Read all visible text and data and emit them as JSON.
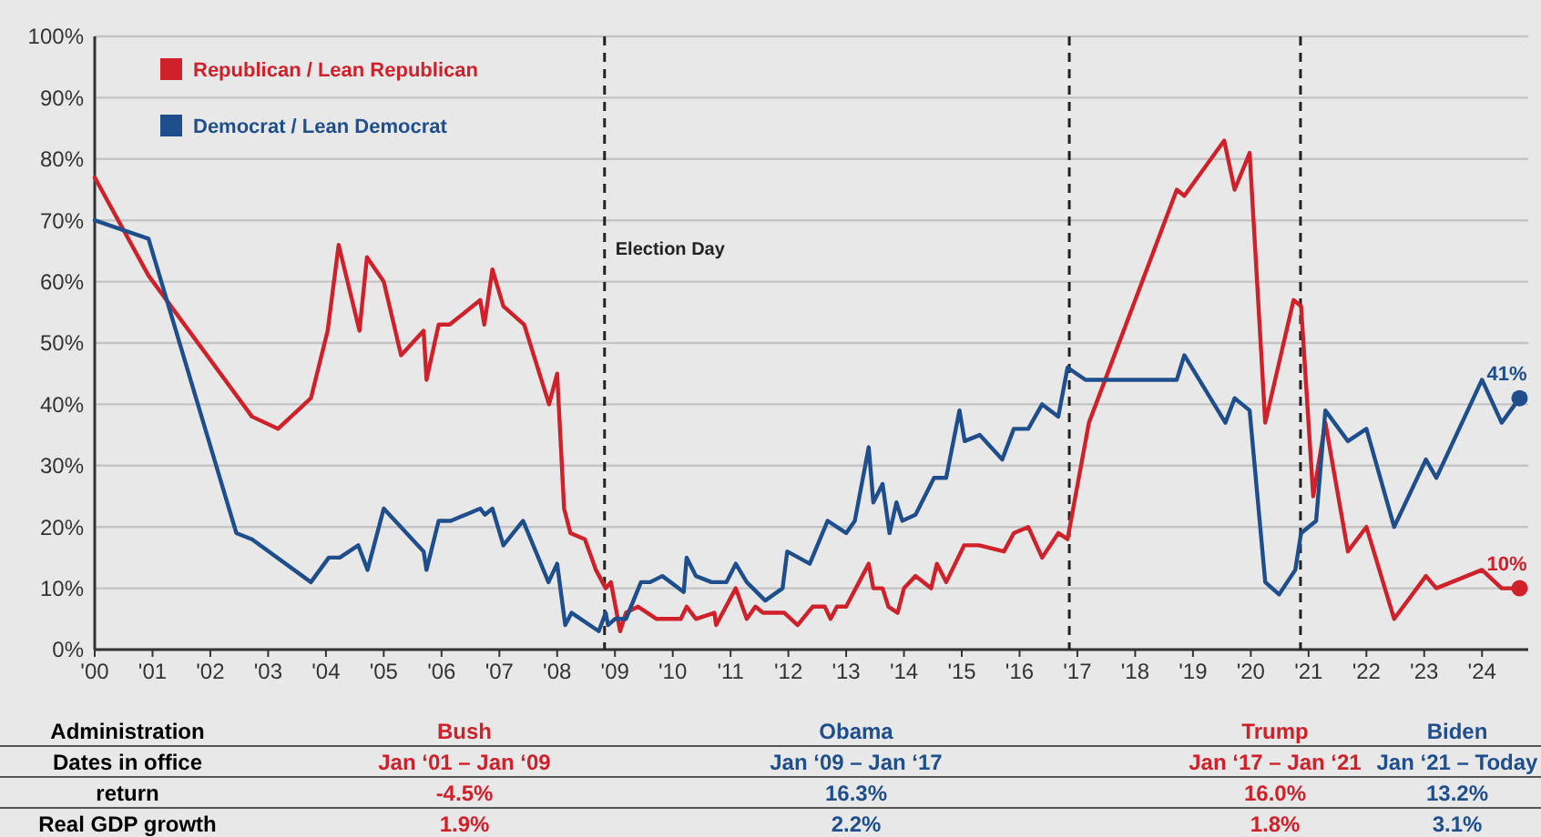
{
  "chart_data": {
    "type": "line",
    "legend": "top left",
    "grid": "y",
    "line_style": "solid",
    "marker": "none",
    "xlim": [
      2000,
      2024.8
    ],
    "xticks": [
      {
        "value": 2000,
        "label": "'00"
      },
      {
        "value": 2001,
        "label": "'01"
      },
      {
        "value": 2002,
        "label": "'02"
      },
      {
        "value": 2003,
        "label": "'03"
      },
      {
        "value": 2004,
        "label": "'04"
      },
      {
        "value": 2005,
        "label": "'05"
      },
      {
        "value": 2006,
        "label": "'06"
      },
      {
        "value": 2007,
        "label": "'07"
      },
      {
        "value": 2008,
        "label": "'08"
      },
      {
        "value": 2009,
        "label": "'09"
      },
      {
        "value": 2010,
        "label": "'10"
      },
      {
        "value": 2011,
        "label": "'11"
      },
      {
        "value": 2012,
        "label": "'12"
      },
      {
        "value": 2013,
        "label": "'13"
      },
      {
        "value": 2014,
        "label": "'14"
      },
      {
        "value": 2015,
        "label": "'15"
      },
      {
        "value": 2016,
        "label": "'16"
      },
      {
        "value": 2017,
        "label": "'17"
      },
      {
        "value": 2018,
        "label": "'18"
      },
      {
        "value": 2019,
        "label": "'19"
      },
      {
        "value": 2020,
        "label": "'20"
      },
      {
        "value": 2021,
        "label": "'21"
      },
      {
        "value": 2022,
        "label": "'22"
      },
      {
        "value": 2023,
        "label": "'23"
      },
      {
        "value": 2024,
        "label": "'24"
      }
    ],
    "ylim": [
      0,
      100
    ],
    "yticks": [
      {
        "value": 0,
        "label": "0%"
      },
      {
        "value": 10,
        "label": "10%"
      },
      {
        "value": 20,
        "label": "20%"
      },
      {
        "value": 30,
        "label": "30%"
      },
      {
        "value": 40,
        "label": "40%"
      },
      {
        "value": 50,
        "label": "50%"
      },
      {
        "value": 60,
        "label": "60%"
      },
      {
        "value": 70,
        "label": "70%"
      },
      {
        "value": 80,
        "label": "80%"
      },
      {
        "value": 90,
        "label": "90%"
      },
      {
        "value": 100,
        "label": "100%"
      }
    ],
    "series": [
      {
        "name": "Republican / Lean Republican",
        "color": "#d0202a",
        "x": [
          2000.0,
          2000.93,
          2002.72,
          2003.17,
          2003.74,
          2004.03,
          2004.22,
          2004.58,
          2004.71,
          2005.0,
          2005.3,
          2005.69,
          2005.74,
          2005.95,
          2006.14,
          2006.67,
          2006.74,
          2006.88,
          2007.07,
          2007.43,
          2007.86,
          2008.0,
          2008.12,
          2008.23,
          2008.48,
          2008.67,
          2008.84,
          2008.93,
          2009.09,
          2009.19,
          2009.4,
          2009.72,
          2010.14,
          2010.24,
          2010.4,
          2010.72,
          2010.75,
          2011.09,
          2011.28,
          2011.43,
          2011.56,
          2011.93,
          2012.16,
          2012.42,
          2012.63,
          2012.73,
          2012.84,
          2013.0,
          2013.39,
          2013.47,
          2013.63,
          2013.73,
          2013.89,
          2014.0,
          2014.2,
          2014.47,
          2014.57,
          2014.73,
          2015.04,
          2015.3,
          2015.73,
          2015.9,
          2016.15,
          2016.39,
          2016.67,
          2016.83,
          2017.2,
          2018.72,
          2018.85,
          2019.54,
          2019.72,
          2019.98,
          2020.25,
          2020.74,
          2020.87,
          2021.08,
          2021.29,
          2021.68,
          2022.0,
          2022.48,
          2023.03,
          2023.21,
          2024.0,
          2024.34,
          2024.65
        ],
        "values": [
          77,
          61,
          38,
          36,
          41,
          52,
          66,
          52,
          64,
          60,
          48,
          52,
          44,
          53,
          53,
          57,
          53,
          62,
          56,
          53,
          40,
          45,
          23,
          19,
          18,
          13,
          10,
          11,
          3,
          6,
          7,
          5,
          5,
          7,
          5,
          6,
          4,
          10,
          5,
          7,
          6,
          6,
          4,
          7,
          7,
          5,
          7,
          7,
          14,
          10,
          10,
          7,
          6,
          10,
          12,
          10,
          14,
          11,
          17,
          17,
          16,
          19,
          20,
          15,
          19,
          18,
          37,
          75,
          74,
          83,
          75,
          81,
          37,
          57,
          56,
          25,
          37,
          16,
          20,
          5,
          12,
          10,
          13,
          10,
          10
        ]
      },
      {
        "name": "Democrat / Lean Democrat",
        "color": "#1f4e8c",
        "x": [
          2000.0,
          2000.93,
          2002.45,
          2002.72,
          2003.74,
          2004.05,
          2004.24,
          2004.56,
          2004.72,
          2005.0,
          2005.69,
          2005.74,
          2005.95,
          2006.16,
          2006.67,
          2006.75,
          2006.88,
          2007.07,
          2007.41,
          2007.85,
          2008.0,
          2008.14,
          2008.25,
          2008.72,
          2008.84,
          2008.88,
          2009.0,
          2009.19,
          2009.45,
          2009.61,
          2009.82,
          2010.19,
          2010.24,
          2010.4,
          2010.67,
          2010.93,
          2011.09,
          2011.28,
          2011.6,
          2011.9,
          2011.98,
          2012.37,
          2012.68,
          2013.0,
          2013.15,
          2013.39,
          2013.47,
          2013.63,
          2013.75,
          2013.87,
          2013.97,
          2014.2,
          2014.52,
          2014.73,
          2014.96,
          2015.05,
          2015.31,
          2015.7,
          2015.9,
          2016.15,
          2016.39,
          2016.67,
          2016.83,
          2017.14,
          2018.72,
          2018.85,
          2019.56,
          2019.72,
          2019.98,
          2020.25,
          2020.49,
          2020.77,
          2020.87,
          2021.13,
          2021.29,
          2021.68,
          2022.0,
          2022.48,
          2023.03,
          2023.21,
          2024.0,
          2024.34,
          2024.65
        ],
        "values": [
          70,
          67,
          19,
          18,
          11,
          15,
          15,
          17,
          13,
          23,
          16,
          13,
          21,
          21,
          23,
          22,
          23,
          17,
          21,
          11,
          14,
          4,
          6,
          3,
          6,
          4,
          5,
          5,
          11,
          11,
          12,
          9.4,
          15,
          12,
          11,
          11,
          14,
          11,
          8,
          10,
          16,
          14,
          21,
          19,
          21,
          33,
          24,
          27,
          19,
          24,
          21,
          22,
          28,
          28,
          39,
          34,
          35,
          31,
          36,
          36,
          40,
          38,
          46,
          44,
          44,
          48,
          37,
          41,
          39,
          11,
          9,
          13,
          19,
          21,
          39,
          34,
          36,
          20,
          31,
          28,
          44,
          37,
          41
        ]
      }
    ],
    "ref_lines": [
      {
        "axis": "x",
        "value": 2008.82,
        "label": "Election Day",
        "line_style": "dashed"
      },
      {
        "axis": "x",
        "value": 2016.86,
        "label": null,
        "line_style": "dashed"
      },
      {
        "axis": "x",
        "value": 2020.86,
        "label": null,
        "line_style": "dashed"
      }
    ],
    "annotations": [
      {
        "text": "41%",
        "x": 2024.65,
        "y": 41
      },
      {
        "text": "10%",
        "x": 2024.65,
        "y": 10
      },
      "Administration",
      "Bush",
      "Obama",
      "Trump",
      "Biden",
      "Dates in office",
      "Jan ‘01 – Jan ‘09",
      "Jan ‘09 – Jan ‘17",
      "Jan ‘17 – Jan ‘21",
      "Jan ‘21 – Today",
      "return",
      "-4.5%",
      "16.3%",
      "16.0%",
      "13.2%",
      "Real GDP growth",
      "1.9%",
      "2.2%",
      "1.8%",
      "3.1%"
    ]
  }
}
